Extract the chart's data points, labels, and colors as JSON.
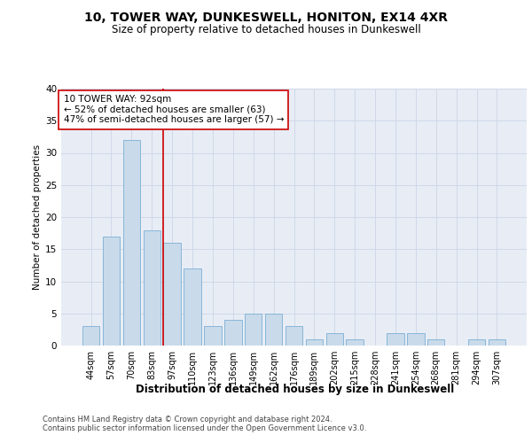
{
  "title": "10, TOWER WAY, DUNKESWELL, HONITON, EX14 4XR",
  "subtitle": "Size of property relative to detached houses in Dunkeswell",
  "xlabel": "Distribution of detached houses by size in Dunkeswell",
  "ylabel": "Number of detached properties",
  "categories": [
    "44sqm",
    "57sqm",
    "70sqm",
    "83sqm",
    "97sqm",
    "110sqm",
    "123sqm",
    "136sqm",
    "149sqm",
    "162sqm",
    "176sqm",
    "189sqm",
    "202sqm",
    "215sqm",
    "228sqm",
    "241sqm",
    "254sqm",
    "268sqm",
    "281sqm",
    "294sqm",
    "307sqm"
  ],
  "values": [
    3,
    17,
    32,
    18,
    16,
    12,
    3,
    4,
    5,
    5,
    3,
    1,
    2,
    1,
    0,
    2,
    2,
    1,
    0,
    1,
    1
  ],
  "bar_color": "#c9daea",
  "bar_edge_color": "#7bafd4",
  "grid_color": "#d0d8e8",
  "background_color": "#e8edf5",
  "vline_color": "#cc0000",
  "vline_pos": 3.57,
  "annotation_line1": "10 TOWER WAY: 92sqm",
  "annotation_line2": "← 52% of detached houses are smaller (63)",
  "annotation_line3": "47% of semi-detached houses are larger (57) →",
  "annotation_box_color": "#ffffff",
  "annotation_box_edge": "#cc0000",
  "ylim": [
    0,
    40
  ],
  "yticks": [
    0,
    5,
    10,
    15,
    20,
    25,
    30,
    35,
    40
  ],
  "title_fontsize": 10,
  "subtitle_fontsize": 8.5,
  "ylabel_fontsize": 7.5,
  "xlabel_fontsize": 8.5,
  "tick_fontsize": 7,
  "annotation_fontsize": 7.5,
  "footer_fontsize": 6,
  "footer_line1": "Contains HM Land Registry data © Crown copyright and database right 2024.",
  "footer_line2": "Contains public sector information licensed under the Open Government Licence v3.0."
}
